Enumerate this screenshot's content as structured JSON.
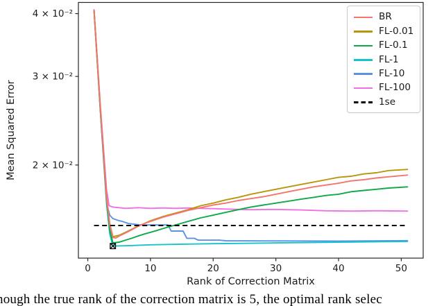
{
  "figure": {
    "caption_partial": "nough the true rank of the correction matrix is 5, the optimal rank selec"
  },
  "chart_data": {
    "type": "line",
    "title": "",
    "xlabel": "Rank of Correction Matrix",
    "ylabel": "Mean Squared Error",
    "yscale": "log",
    "grid": "off",
    "legend_position": "upper right",
    "xlim": [
      -1.5,
      53.5
    ],
    "ylim": [
      0.01306,
      0.0421
    ],
    "x_ticks": [
      0,
      10,
      20,
      30,
      40,
      50
    ],
    "y_ticks": [
      {
        "v": 0.04,
        "label": "4 × 10⁻²"
      },
      {
        "v": 0.03,
        "label": "3 × 10⁻²"
      },
      {
        "v": 0.02,
        "label": "2 × 10⁻²"
      }
    ],
    "axis_color": "#262626",
    "series": [
      {
        "name": "BR",
        "color": "#f4756b",
        "points": [
          [
            1,
            0.0406
          ],
          [
            2,
            0.026
          ],
          [
            3,
            0.0171
          ],
          [
            3.5,
            0.0152
          ],
          [
            4,
            0.01435
          ],
          [
            4.5,
            0.01432
          ],
          [
            5,
            0.01445
          ],
          [
            6,
            0.01465
          ],
          [
            7,
            0.01487
          ],
          [
            8,
            0.0151
          ],
          [
            9,
            0.0153
          ],
          [
            10,
            0.01545
          ],
          [
            12,
            0.01575
          ],
          [
            14,
            0.016
          ],
          [
            16,
            0.01625
          ],
          [
            18,
            0.01645
          ],
          [
            20,
            0.01665
          ],
          [
            22,
            0.0168
          ],
          [
            24,
            0.017
          ],
          [
            26,
            0.01715
          ],
          [
            28,
            0.0173
          ],
          [
            30,
            0.0175
          ],
          [
            32,
            0.0177
          ],
          [
            34,
            0.0179
          ],
          [
            36,
            0.0181
          ],
          [
            38,
            0.01825
          ],
          [
            40,
            0.0184
          ],
          [
            42,
            0.0186
          ],
          [
            44,
            0.0187
          ],
          [
            46,
            0.01885
          ],
          [
            48,
            0.01895
          ],
          [
            51,
            0.0191
          ]
        ]
      },
      {
        "name": "FL-0.01",
        "color": "#b8960b",
        "points": [
          [
            1,
            0.0406
          ],
          [
            2,
            0.0261
          ],
          [
            3,
            0.0172
          ],
          [
            3.5,
            0.0153
          ],
          [
            4,
            0.0144
          ],
          [
            5,
            0.0145
          ],
          [
            6,
            0.0147
          ],
          [
            7,
            0.0149
          ],
          [
            8,
            0.01512
          ],
          [
            9,
            0.0153
          ],
          [
            10,
            0.0155
          ],
          [
            12,
            0.0158
          ],
          [
            14,
            0.01605
          ],
          [
            16,
            0.0163
          ],
          [
            18,
            0.0166
          ],
          [
            20,
            0.0168
          ],
          [
            22,
            0.01705
          ],
          [
            24,
            0.01725
          ],
          [
            26,
            0.0175
          ],
          [
            28,
            0.0177
          ],
          [
            30,
            0.0179
          ],
          [
            32,
            0.0181
          ],
          [
            34,
            0.0183
          ],
          [
            36,
            0.0185
          ],
          [
            38,
            0.0187
          ],
          [
            40,
            0.0189
          ],
          [
            42,
            0.019
          ],
          [
            44,
            0.0192
          ],
          [
            46,
            0.0193
          ],
          [
            48,
            0.0195
          ],
          [
            51,
            0.0196
          ]
        ]
      },
      {
        "name": "FL-0.1",
        "color": "#0fa948",
        "points": [
          [
            1,
            0.0405
          ],
          [
            2,
            0.0258
          ],
          [
            3,
            0.0169
          ],
          [
            3.5,
            0.0149
          ],
          [
            4,
            0.014
          ],
          [
            5,
            0.01405
          ],
          [
            6,
            0.01418
          ],
          [
            7,
            0.0143
          ],
          [
            8,
            0.01445
          ],
          [
            9,
            0.01458
          ],
          [
            10,
            0.0147
          ],
          [
            11,
            0.01482
          ],
          [
            12,
            0.01495
          ],
          [
            13,
            0.01508
          ],
          [
            14,
            0.0152
          ],
          [
            16,
            0.01545
          ],
          [
            18,
            0.0157
          ],
          [
            20,
            0.0159
          ],
          [
            22,
            0.0161
          ],
          [
            24,
            0.0163
          ],
          [
            26,
            0.0165
          ],
          [
            28,
            0.01665
          ],
          [
            30,
            0.0168
          ],
          [
            32,
            0.01695
          ],
          [
            34,
            0.0171
          ],
          [
            36,
            0.01725
          ],
          [
            38,
            0.0174
          ],
          [
            40,
            0.0175
          ],
          [
            42,
            0.0177
          ],
          [
            44,
            0.0178
          ],
          [
            46,
            0.0179
          ],
          [
            48,
            0.018
          ],
          [
            51,
            0.0181
          ]
        ]
      },
      {
        "name": "FL-1",
        "color": "#14c3cc",
        "points": [
          [
            1,
            0.0404
          ],
          [
            2,
            0.0256
          ],
          [
            3,
            0.0167
          ],
          [
            3.5,
            0.0146
          ],
          [
            4,
            0.0138
          ],
          [
            6,
            0.01382
          ],
          [
            10,
            0.01388
          ],
          [
            15,
            0.01392
          ],
          [
            20,
            0.01395
          ],
          [
            30,
            0.014
          ],
          [
            40,
            0.01405
          ],
          [
            51,
            0.0141
          ]
        ]
      },
      {
        "name": "FL-10",
        "color": "#5b92e5",
        "points": [
          [
            1,
            0.0405
          ],
          [
            2,
            0.0257
          ],
          [
            3,
            0.0168
          ],
          [
            3.5,
            0.0159
          ],
          [
            4,
            0.01565
          ],
          [
            5,
            0.0155
          ],
          [
            5.5,
            0.01545
          ],
          [
            6.5,
            0.0153
          ],
          [
            7.5,
            0.01525
          ],
          [
            8.5,
            0.0152
          ],
          [
            12.8,
            0.0152
          ],
          [
            13.3,
            0.01478
          ],
          [
            15.2,
            0.01478
          ],
          [
            15.8,
            0.0143
          ],
          [
            17,
            0.0143
          ],
          [
            17.6,
            0.01418
          ],
          [
            21,
            0.01418
          ],
          [
            22,
            0.01414
          ],
          [
            30,
            0.01413
          ],
          [
            40,
            0.01412
          ],
          [
            51,
            0.01415
          ]
        ]
      },
      {
        "name": "FL-100",
        "color": "#f36ee4",
        "points": [
          [
            1,
            0.0407
          ],
          [
            2,
            0.0263
          ],
          [
            3,
            0.0178
          ],
          [
            3.4,
            0.0166
          ],
          [
            4,
            0.0165
          ],
          [
            5,
            0.01645
          ],
          [
            6,
            0.0164
          ],
          [
            8,
            0.01645
          ],
          [
            10,
            0.0164
          ],
          [
            12,
            0.01643
          ],
          [
            14,
            0.0164
          ],
          [
            16,
            0.01643
          ],
          [
            18,
            0.0164
          ],
          [
            20,
            0.01638
          ],
          [
            22,
            0.01635
          ],
          [
            26,
            0.0163
          ],
          [
            30,
            0.01632
          ],
          [
            34,
            0.01628
          ],
          [
            38,
            0.01622
          ],
          [
            42,
            0.0162
          ],
          [
            46,
            0.01622
          ],
          [
            51,
            0.0162
          ]
        ]
      }
    ],
    "reference_line": {
      "name": "1se",
      "value": 0.01516,
      "color": "#000000",
      "style": "dashed",
      "x_start": 1,
      "x_end": 51
    },
    "min_marker": {
      "series": "FL-1",
      "x": 4,
      "y": 0.0138,
      "shape": "boxed-x",
      "color": "#000000"
    }
  }
}
